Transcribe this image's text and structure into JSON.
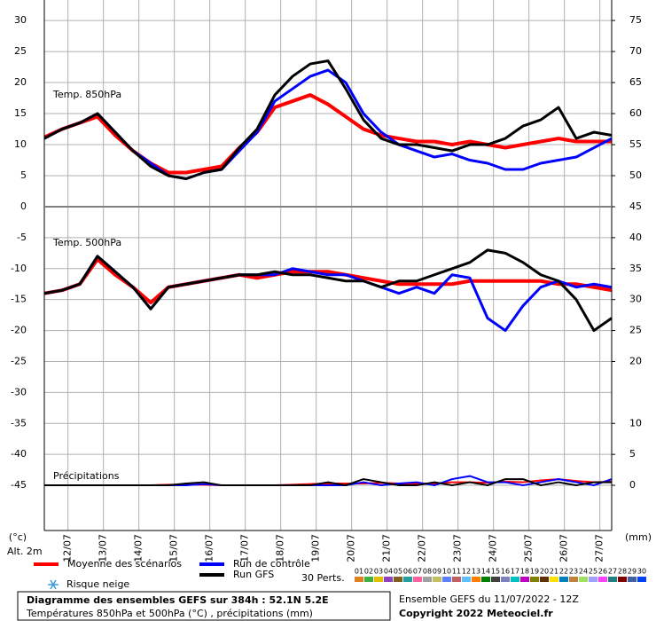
{
  "chart_data": {
    "type": "line",
    "x": [
      0,
      12,
      24,
      36,
      48,
      60,
      72,
      84,
      96,
      108,
      120,
      132,
      144,
      156,
      168,
      180,
      192,
      204,
      216,
      228,
      240,
      252,
      264,
      276,
      288,
      300,
      312,
      324,
      336,
      348,
      360,
      372,
      384
    ],
    "xlim": [
      0,
      384
    ],
    "xticks": [
      {
        "value": 16,
        "label": "12/07"
      },
      {
        "value": 40,
        "label": "13/07"
      },
      {
        "value": 64,
        "label": "14/07"
      },
      {
        "value": 88,
        "label": "15/07"
      },
      {
        "value": 112,
        "label": "16/07"
      },
      {
        "value": 136,
        "label": "17/07"
      },
      {
        "value": 160,
        "label": "18/07"
      },
      {
        "value": 184,
        "label": "19/07"
      },
      {
        "value": 208,
        "label": "20/07"
      },
      {
        "value": 232,
        "label": "21/07"
      },
      {
        "value": 256,
        "label": "22/07"
      },
      {
        "value": 280,
        "label": "23/07"
      },
      {
        "value": 304,
        "label": "24/07"
      },
      {
        "value": 328,
        "label": "25/07"
      },
      {
        "value": 352,
        "label": "26/07"
      },
      {
        "value": 376,
        "label": "27/07"
      }
    ],
    "grid": true,
    "y_unit": "(°c)",
    "y2_unit": "(mm)",
    "altitude": "Alt. 2m",
    "panels": [
      {
        "title": "Temp. 850hPa",
        "ylim": [
          0,
          33.3
        ],
        "yticks": [
          0,
          5,
          10,
          15,
          20,
          25,
          30
        ],
        "y2lim": [
          45,
          78.3
        ],
        "y2ticks": [
          45,
          50,
          55,
          60,
          65,
          70,
          75
        ],
        "series": [
          {
            "name": "Moyenne des scénarios",
            "color": "#ff0000",
            "values": [
              11.2,
              12.5,
              13.5,
              14.5,
              11.5,
              9,
              7,
              5.5,
              5.5,
              6,
              6.5,
              9.5,
              12,
              16,
              17,
              18,
              16.5,
              14.5,
              12.5,
              11.5,
              11,
              10.5,
              10.5,
              10,
              10.5,
              10,
              9.5,
              10,
              10.5,
              11,
              10.5,
              10.5,
              10.5
            ]
          },
          {
            "name": "Run de contrôle",
            "color": "#0000ff",
            "values": [
              11,
              12.5,
              13.5,
              15,
              12,
              9,
              7,
              5,
              4.5,
              5.5,
              6,
              9,
              12,
              17,
              19,
              21,
              22,
              20,
              15,
              12,
              10,
              9,
              8,
              8.5,
              7.5,
              7,
              6,
              6,
              7,
              7.5,
              8,
              9.5,
              11
            ]
          },
          {
            "name": "Run GFS",
            "color": "#000000",
            "values": [
              11,
              12.5,
              13.5,
              15,
              12,
              9,
              6.5,
              5,
              4.5,
              5.5,
              6,
              9.5,
              12.5,
              18,
              21,
              23,
              23.5,
              19,
              14,
              11,
              10,
              10,
              9.5,
              9,
              10,
              10,
              11,
              13,
              14,
              16,
              11,
              12,
              11.5
            ]
          }
        ]
      },
      {
        "title": "Temp. 500hPa",
        "title2": "Précipitations",
        "ylim": [
          -52.3,
          0
        ],
        "yticks": [
          -45,
          -40,
          -35,
          -30,
          -25,
          -20,
          -15,
          -10,
          -5
        ],
        "y2lim": [
          -7.3,
          45
        ],
        "y2ticks": [
          0,
          5,
          10,
          20,
          25,
          30,
          35,
          40
        ],
        "series": [
          {
            "color": "#ff0000",
            "values": [
              -14,
              -13.5,
              -12.5,
              -8.5,
              -11,
              -13,
              -15.5,
              -13,
              -12.5,
              -12,
              -11.5,
              -11,
              -11.5,
              -11,
              -10.5,
              -10.5,
              -10.5,
              -11,
              -11.5,
              -12,
              -12.5,
              -12.5,
              -12.5,
              -12.5,
              -12,
              -12,
              -12,
              -12,
              -12,
              -12.5,
              -12.5,
              -13,
              -13.5
            ]
          },
          {
            "color": "#0000ff",
            "values": [
              -14,
              -13.5,
              -12.5,
              -8,
              -10.5,
              -13,
              -16.5,
              -13,
              -12.5,
              -12,
              -11.5,
              -11,
              -11,
              -11,
              -10,
              -10.5,
              -11,
              -11,
              -12,
              -13,
              -14,
              -13,
              -14,
              -11,
              -11.5,
              -18,
              -20,
              -16,
              -13,
              -12,
              -13,
              -12.5,
              -13
            ]
          },
          {
            "color": "#000000",
            "values": [
              -14,
              -13.5,
              -12.5,
              -8,
              -10.5,
              -13,
              -16.5,
              -13,
              -12.5,
              -12,
              -11.5,
              -11,
              -11,
              -10.5,
              -11,
              -11,
              -11.5,
              -12,
              -12,
              -13,
              -12,
              -12,
              -11,
              -10,
              -9,
              -7,
              -7.5,
              -9,
              -11,
              -12,
              -15,
              -20,
              -18
            ]
          },
          {
            "color": "#ff0000",
            "axis": "y2",
            "values": [
              0,
              0,
              0,
              0,
              0,
              0,
              0,
              0.1,
              0.1,
              0.1,
              0,
              0,
              0,
              0,
              0.1,
              0.2,
              0.3,
              0.3,
              0.3,
              0.4,
              0.3,
              0.3,
              0.3,
              0.5,
              0.5,
              0.4,
              0.6,
              0.5,
              0.8,
              1,
              0.7,
              0.5,
              0.6
            ]
          },
          {
            "color": "#0000ff",
            "axis": "y2",
            "values": [
              0,
              0,
              0,
              0,
              0,
              0,
              0,
              0,
              0,
              0.2,
              0,
              0,
              0,
              0,
              0,
              0,
              0,
              0,
              0.5,
              0,
              0.3,
              0.5,
              0,
              1,
              1.5,
              0.5,
              0.5,
              0,
              0.5,
              1,
              0.5,
              0,
              1
            ]
          },
          {
            "color": "#000000",
            "axis": "y2",
            "values": [
              0,
              0,
              0,
              0,
              0,
              0,
              0,
              0,
              0.3,
              0.5,
              0,
              0,
              0,
              0,
              0,
              0,
              0.5,
              0,
              1,
              0.5,
              0,
              0,
              0.5,
              0,
              0.5,
              0,
              1,
              1,
              0,
              0.5,
              0,
              0.5,
              0.5
            ]
          }
        ]
      }
    ],
    "snow_label": "Risque neige",
    "perts_label": "30 Perts.",
    "perts": [
      {
        "name": "01",
        "color": "#e08020"
      },
      {
        "name": "02",
        "color": "#40b040"
      },
      {
        "name": "03",
        "color": "#e0c000"
      },
      {
        "name": "04",
        "color": "#9040c0"
      },
      {
        "name": "05",
        "color": "#806020"
      },
      {
        "name": "06",
        "color": "#20a0a0"
      },
      {
        "name": "07",
        "color": "#ff60a0"
      },
      {
        "name": "08",
        "color": "#a0a0a0"
      },
      {
        "name": "09",
        "color": "#c0c060"
      },
      {
        "name": "10",
        "color": "#6080ff"
      },
      {
        "name": "11",
        "color": "#c06060"
      },
      {
        "name": "12",
        "color": "#60c0ff"
      },
      {
        "name": "13",
        "color": "#ff8000"
      },
      {
        "name": "14",
        "color": "#008000"
      },
      {
        "name": "15",
        "color": "#404040"
      },
      {
        "name": "16",
        "color": "#8080c0"
      },
      {
        "name": "17",
        "color": "#00c0c0"
      },
      {
        "name": "18",
        "color": "#c000c0"
      },
      {
        "name": "19",
        "color": "#808000"
      },
      {
        "name": "20",
        "color": "#603000"
      },
      {
        "name": "21",
        "color": "#ffe000"
      },
      {
        "name": "22",
        "color": "#0080c0"
      },
      {
        "name": "23",
        "color": "#c08040"
      },
      {
        "name": "24",
        "color": "#a0e060"
      },
      {
        "name": "25",
        "color": "#a0a0ff"
      },
      {
        "name": "26",
        "color": "#ff40ff"
      },
      {
        "name": "27",
        "color": "#208080"
      },
      {
        "name": "28",
        "color": "#800000"
      },
      {
        "name": "29",
        "color": "#4060a0"
      },
      {
        "name": "30",
        "color": "#0040ff"
      }
    ],
    "footer": {
      "title": "Diagramme des ensembles GEFS sur 384h : 52.1N 5.2E",
      "subtitle": "Températures 850hPa et 500hPa (°C) , précipitations (mm)",
      "run": "Ensemble GEFS du 11/07/2022 - 12Z",
      "copyright": "Copyright 2022 Meteociel.fr"
    }
  }
}
